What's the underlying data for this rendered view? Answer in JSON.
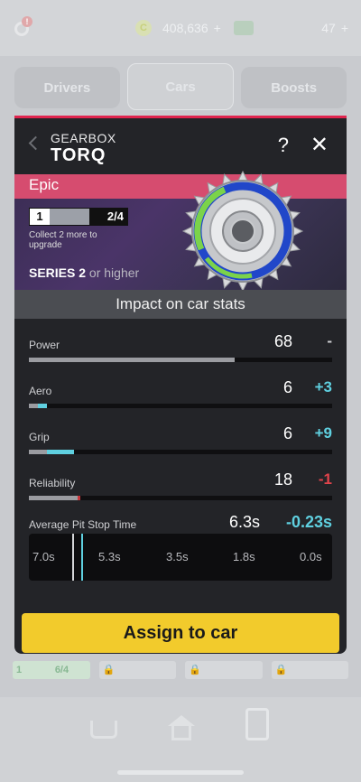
{
  "topbar": {
    "alert_icon": "!",
    "coin_icon": "C",
    "coins": "408,636",
    "coins_plus": "+",
    "tokens": "47",
    "tokens_plus": "+"
  },
  "tabs": [
    {
      "label": "Drivers"
    },
    {
      "label": "Cars"
    },
    {
      "label": "Boosts"
    }
  ],
  "background_slot": {
    "level": "1",
    "count": "6/4"
  },
  "modal": {
    "category": "GEARBOX",
    "name": "TORQ",
    "help_label": "?",
    "close_label": "✕",
    "rarity": "Epic",
    "progress": {
      "level": "1",
      "count": "2/4",
      "current": 2,
      "required": 4
    },
    "collect_text": "Collect 2 more to upgrade",
    "series_bold": "SERIES 2",
    "series_rest": "or higher",
    "impact_title": "Impact on car stats",
    "stats": [
      {
        "label": "Power",
        "value": "68",
        "delta": "-",
        "fill": 0.68,
        "change": 0
      },
      {
        "label": "Aero",
        "value": "6",
        "delta": "+3",
        "fill": 0.03,
        "change": 0.03
      },
      {
        "label": "Grip",
        "value": "6",
        "delta": "+9",
        "fill": 0.06,
        "change": 0.09
      },
      {
        "label": "Reliability",
        "value": "18",
        "delta": "-1",
        "fill": 0.17,
        "change": -0.01
      }
    ],
    "pit": {
      "label": "Average Pit Stop Time",
      "value": "6.3s",
      "delta": "-0.23s",
      "ticks": [
        "7.0s",
        "5.3s",
        "3.5s",
        "1.8s",
        "0.0s"
      ]
    },
    "assign_label": "Assign to car"
  },
  "colors": {
    "accent": "#e0244e",
    "rarity": "#d64c6f",
    "positive": "#5fd0e0",
    "negative": "#e0434b",
    "button": "#f2cb2c"
  }
}
